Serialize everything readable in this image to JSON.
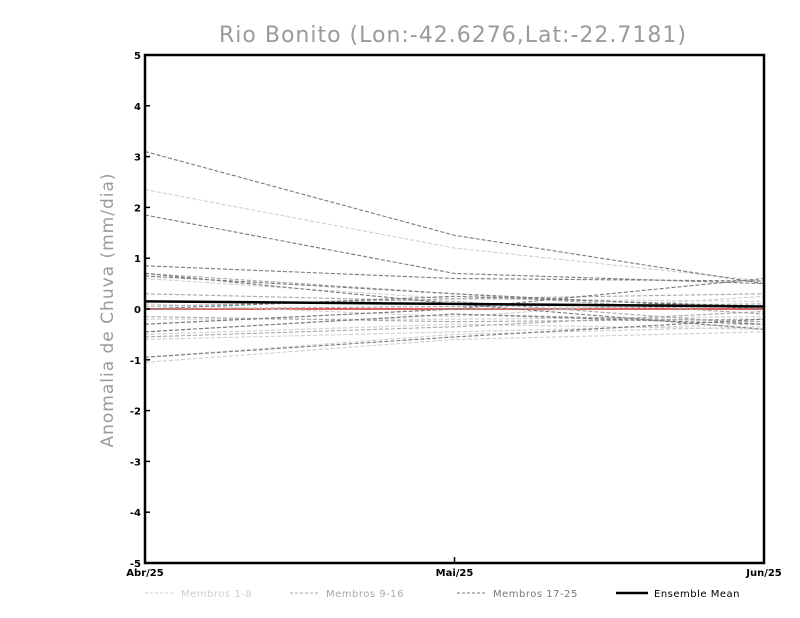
{
  "chart_data": {
    "type": "line",
    "title": "Rio Bonito (Lon:-42.6276,Lat:-22.7181)",
    "ylabel": "Anomalia de Chuva (mm/dia)",
    "xlabel": "",
    "categories": [
      "Abr/25",
      "Mai/25",
      "Jun/25"
    ],
    "ylim": [
      -5,
      5
    ],
    "yticks": [
      -5,
      -4,
      -3,
      -2,
      -1,
      0,
      1,
      2,
      3,
      4,
      5
    ],
    "grid": false,
    "zero_line_color": "#e06060",
    "legend": [
      {
        "label": "Membros 1-8",
        "color": "#cfcfcf",
        "style": "dashed"
      },
      {
        "label": "Membros 9-16",
        "color": "#a8a8a8",
        "style": "dashed"
      },
      {
        "label": "Membros 17-25",
        "color": "#7a7a7a",
        "style": "dashed"
      },
      {
        "label": "Ensemble Mean",
        "color": "#000000",
        "style": "solid"
      }
    ],
    "series": [
      {
        "group": "Membros 1-8",
        "color": "#cfcfcf",
        "values": [
          2.35,
          1.2,
          0.55
        ]
      },
      {
        "group": "Membros 1-8",
        "color": "#cfcfcf",
        "values": [
          0.6,
          0.2,
          0.15
        ]
      },
      {
        "group": "Membros 1-8",
        "color": "#cfcfcf",
        "values": [
          -0.5,
          -0.3,
          -0.4
        ]
      },
      {
        "group": "Membros 1-8",
        "color": "#cfcfcf",
        "values": [
          -0.6,
          -0.45,
          -0.3
        ]
      },
      {
        "group": "Membros 1-8",
        "color": "#cfcfcf",
        "values": [
          -0.95,
          -0.5,
          -0.35
        ]
      },
      {
        "group": "Membros 1-8",
        "color": "#cfcfcf",
        "values": [
          -1.05,
          -0.6,
          -0.45
        ]
      },
      {
        "group": "Membros 1-8",
        "color": "#cfcfcf",
        "values": [
          0.1,
          -0.15,
          0.25
        ]
      },
      {
        "group": "Membros 1-8",
        "color": "#cfcfcf",
        "values": [
          -0.2,
          -0.2,
          -0.15
        ]
      },
      {
        "group": "Membros 9-16",
        "color": "#a8a8a8",
        "values": [
          0.7,
          0.3,
          -0.1
        ]
      },
      {
        "group": "Membros 9-16",
        "color": "#a8a8a8",
        "values": [
          0.0,
          0.05,
          0.1
        ]
      },
      {
        "group": "Membros 9-16",
        "color": "#a8a8a8",
        "values": [
          -0.3,
          0.0,
          0.05
        ]
      },
      {
        "group": "Membros 9-16",
        "color": "#a8a8a8",
        "values": [
          -0.45,
          -0.1,
          -0.25
        ]
      },
      {
        "group": "Membros 9-16",
        "color": "#a8a8a8",
        "values": [
          0.3,
          0.15,
          -0.3
        ]
      },
      {
        "group": "Membros 9-16",
        "color": "#a8a8a8",
        "values": [
          -0.55,
          -0.35,
          -0.05
        ]
      },
      {
        "group": "Membros 9-16",
        "color": "#a8a8a8",
        "values": [
          0.05,
          0.2,
          0.3
        ]
      },
      {
        "group": "Membros 9-16",
        "color": "#a8a8a8",
        "values": [
          -0.15,
          -0.25,
          -0.2
        ]
      },
      {
        "group": "Membros 17-25",
        "color": "#7a7a7a",
        "values": [
          3.1,
          1.45,
          0.5
        ]
      },
      {
        "group": "Membros 17-25",
        "color": "#7a7a7a",
        "values": [
          1.85,
          0.7,
          0.5
        ]
      },
      {
        "group": "Membros 17-25",
        "color": "#7a7a7a",
        "values": [
          0.85,
          0.6,
          0.55
        ]
      },
      {
        "group": "Membros 17-25",
        "color": "#7a7a7a",
        "values": [
          0.65,
          0.3,
          0.0
        ]
      },
      {
        "group": "Membros 17-25",
        "color": "#7a7a7a",
        "values": [
          -0.3,
          0.0,
          0.6
        ]
      },
      {
        "group": "Membros 17-25",
        "color": "#7a7a7a",
        "values": [
          -0.95,
          -0.55,
          -0.2
        ]
      },
      {
        "group": "Membros 17-25",
        "color": "#7a7a7a",
        "values": [
          0.0,
          0.25,
          0.05
        ]
      },
      {
        "group": "Membros 17-25",
        "color": "#7a7a7a",
        "values": [
          -0.45,
          -0.1,
          -0.3
        ]
      },
      {
        "group": "Membros 17-25",
        "color": "#7a7a7a",
        "values": [
          0.7,
          0.1,
          -0.4
        ]
      },
      {
        "group": "Ensemble Mean",
        "color": "#000000",
        "values": [
          0.15,
          0.1,
          0.05
        ]
      }
    ]
  }
}
